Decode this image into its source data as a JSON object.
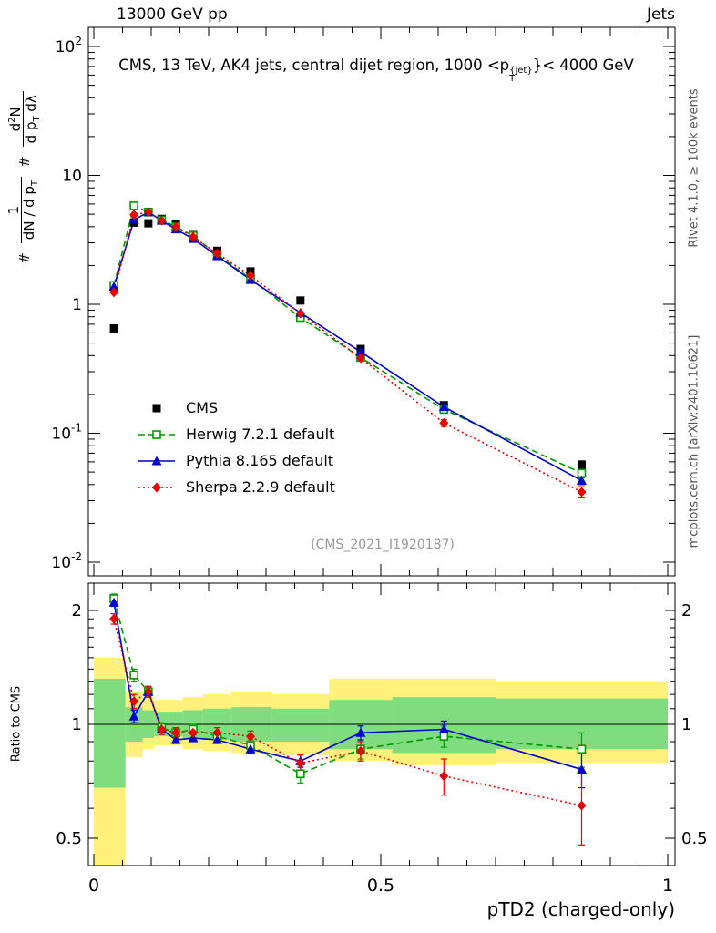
{
  "header": {
    "left": "13000 GeV pp",
    "right": "Jets"
  },
  "title": {
    "prefix": "CMS, 13 TeV, AK4 jets, central dijet region, 1000 <p",
    "sup": "{jet}",
    "sub": "T",
    "suffix": "}< 4000 GeV"
  },
  "ylabel_main": {
    "hash1": "#",
    "num1": "1",
    "den1a": "dN / d p",
    "den1sub": "T",
    "hash2": "#",
    "num2a": "d",
    "num2sup": "2",
    "num2b": "N",
    "den2a": "d p",
    "den2sub": "T",
    "den2b": " dλ"
  },
  "ratio_ylabel": "Ratio to CMS",
  "right_texts": {
    "top": "Rivet 4.1.0, ≥ 100k events",
    "bottom": "mcplots.cern.ch [arXiv:2401.10621]"
  },
  "watermark": "(CMS_2021_I1920187)",
  "xaxis_title": "pTD2 (charged-only)",
  "chart_data": {
    "type": "line",
    "title": "CMS, 13 TeV, AK4 jets, central dijet region, 1000 < pT^{jet} < 4000 GeV",
    "xlabel": "pTD2 (charged-only)",
    "ylabel": "# 1/(dN/dpT) d2N/(dpT dλ)",
    "ratio_label": "Ratio to CMS",
    "x_range": [
      0,
      1
    ],
    "y_range_main": [
      0.01,
      100
    ],
    "y_scale_main": "log",
    "y_range_ratio": [
      0.42,
      2.36
    ],
    "y_scale_ratio": "log",
    "grid": false,
    "legend_position": "center-left",
    "x": [
      0.035,
      0.07,
      0.095,
      0.118,
      0.143,
      0.173,
      0.215,
      0.273,
      0.36,
      0.465,
      0.61,
      0.85
    ],
    "series": [
      {
        "name": "CMS",
        "color": "#000000",
        "marker": "square-filled",
        "line": "none",
        "values": [
          0.65,
          4.3,
          4.25,
          4.6,
          4.2,
          3.5,
          2.6,
          1.8,
          1.07,
          0.45,
          0.165,
          0.057
        ],
        "err_rel": [
          0.03,
          0.03,
          0.03,
          0.03,
          0.03,
          0.03,
          0.03,
          0.03,
          0.03,
          0.04,
          0.05,
          0.07
        ]
      },
      {
        "name": "Herwig 7.2.1 default",
        "color": "#009900",
        "marker": "square-open",
        "line": "dashed",
        "values": [
          1.4,
          5.81,
          5.19,
          4.51,
          3.99,
          3.4,
          2.42,
          1.58,
          0.79,
          0.387,
          0.153,
          0.049
        ],
        "err_rel": [
          0.03,
          0.02,
          0.02,
          0.02,
          0.02,
          0.02,
          0.02,
          0.02,
          0.03,
          0.04,
          0.05,
          0.08
        ],
        "ratio": [
          2.15,
          1.35,
          1.22,
          0.98,
          0.95,
          0.97,
          0.93,
          0.88,
          0.74,
          0.86,
          0.93,
          0.86
        ],
        "ratio_err": [
          0.06,
          0.05,
          0.04,
          0.03,
          0.03,
          0.03,
          0.03,
          0.03,
          0.04,
          0.05,
          0.06,
          0.09
        ]
      },
      {
        "name": "Pythia 8.165 default",
        "color": "#0000cc",
        "marker": "triangle-filled",
        "line": "solid",
        "values": [
          1.37,
          4.52,
          5.19,
          4.46,
          3.82,
          3.22,
          2.37,
          1.55,
          0.86,
          0.428,
          0.16,
          0.043
        ],
        "err_rel": [
          0.02,
          0.02,
          0.02,
          0.02,
          0.02,
          0.02,
          0.02,
          0.02,
          0.02,
          0.03,
          0.04,
          0.07
        ],
        "ratio": [
          2.1,
          1.05,
          1.22,
          0.97,
          0.91,
          0.92,
          0.91,
          0.86,
          0.8,
          0.95,
          0.97,
          0.76
        ],
        "ratio_err": [
          0.05,
          0.04,
          0.03,
          0.02,
          0.02,
          0.02,
          0.02,
          0.02,
          0.03,
          0.04,
          0.05,
          0.08
        ]
      },
      {
        "name": "Sherpa 2.2.9 default",
        "color": "#e60000",
        "marker": "diamond-filled",
        "line": "dotted",
        "values": [
          1.24,
          4.95,
          5.19,
          4.46,
          3.99,
          3.33,
          2.47,
          1.67,
          0.85,
          0.383,
          0.12,
          0.035
        ],
        "err_rel": [
          0.03,
          0.02,
          0.02,
          0.02,
          0.02,
          0.02,
          0.02,
          0.02,
          0.03,
          0.04,
          0.06,
          0.1
        ],
        "ratio": [
          1.9,
          1.15,
          1.22,
          0.97,
          0.95,
          0.95,
          0.95,
          0.93,
          0.79,
          0.85,
          0.73,
          0.61
        ],
        "ratio_err": [
          0.06,
          0.05,
          0.04,
          0.03,
          0.03,
          0.03,
          0.03,
          0.03,
          0.04,
          0.05,
          0.08,
          0.13
        ]
      }
    ],
    "bands": {
      "edges": [
        0,
        0.055,
        0.085,
        0.105,
        0.13,
        0.155,
        0.19,
        0.24,
        0.31,
        0.41,
        0.52,
        0.7,
        1.0
      ],
      "yellow": [
        [
          0.3,
          1.5
        ],
        [
          0.82,
          1.22
        ],
        [
          0.86,
          1.18
        ],
        [
          0.88,
          1.16
        ],
        [
          0.88,
          1.16
        ],
        [
          0.86,
          1.18
        ],
        [
          0.85,
          1.2
        ],
        [
          0.84,
          1.22
        ],
        [
          0.83,
          1.2
        ],
        [
          0.8,
          1.32
        ],
        [
          0.78,
          1.32
        ],
        [
          0.79,
          1.3
        ]
      ],
      "green": [
        [
          0.68,
          1.32
        ],
        [
          0.9,
          1.11
        ],
        [
          0.92,
          1.09
        ],
        [
          0.93,
          1.08
        ],
        [
          0.93,
          1.08
        ],
        [
          0.92,
          1.09
        ],
        [
          0.91,
          1.1
        ],
        [
          0.9,
          1.11
        ],
        [
          0.9,
          1.1
        ],
        [
          0.86,
          1.16
        ],
        [
          0.84,
          1.18
        ],
        [
          0.86,
          1.17
        ]
      ],
      "yellow_color": "#fff179",
      "green_color": "#7fdd7f"
    },
    "axes": {
      "x_ticks": [
        {
          "v": 0,
          "label": "0"
        },
        {
          "v": 0.5,
          "label": "0.5"
        },
        {
          "v": 1,
          "label": "1"
        }
      ],
      "y_main_ticks": [
        {
          "v": 100,
          "base": "10",
          "exp": "2"
        },
        {
          "v": 10,
          "base": "10",
          "exp": ""
        },
        {
          "v": 1,
          "base": "1",
          "exp": ""
        },
        {
          "v": 0.1,
          "base": "10",
          "exp": "-1"
        },
        {
          "v": 0.01,
          "base": "10",
          "exp": "-2"
        }
      ],
      "y_ratio_ticks": [
        {
          "v": 2,
          "label": "2"
        },
        {
          "v": 1,
          "label": "1"
        },
        {
          "v": 0.5,
          "label": "0.5"
        }
      ],
      "y_ratio_minor": [
        0.6,
        0.7,
        0.8,
        0.9,
        1.1,
        1.2,
        1.3,
        1.4,
        1.5,
        1.6,
        1.7,
        1.8,
        1.9
      ]
    }
  }
}
